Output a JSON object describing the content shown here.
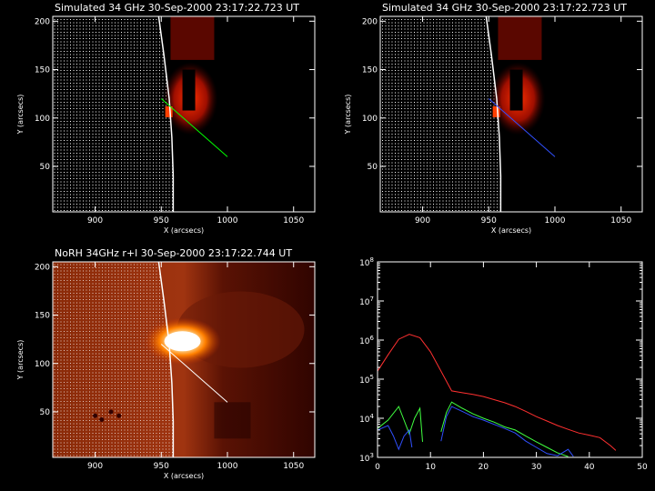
{
  "colors": {
    "background": "#000000",
    "axes": "#ffffff",
    "limb": "#ffffff",
    "profile_line_top_left": "#00ff00",
    "profile_line_top_right": "#3050ff",
    "profile_line_bottom_left": "#ffffff",
    "series_red": "#ff3030",
    "series_green": "#40ff40",
    "series_blue": "#3050ff",
    "heat_low": "#500000",
    "heat_mid": "#c03000",
    "heat_high": "#ffffff"
  },
  "chart_data": [
    {
      "type": "heatmap",
      "id": "sim-left",
      "title": "Simulated 34 GHz 30-Sep-2000 23:17:22.723 UT",
      "xlabel": "X (arcsecs)",
      "ylabel": "Y (arcsecs)",
      "xlim": [
        868,
        1066
      ],
      "ylim": [
        3,
        205
      ],
      "xticks": [
        900,
        950,
        1000,
        1050
      ],
      "yticks": [
        50,
        100,
        150,
        200
      ],
      "limb": [
        [
          948,
          205
        ],
        [
          952,
          165
        ],
        [
          956,
          120
        ],
        [
          958,
          80
        ],
        [
          959,
          40
        ],
        [
          959,
          3
        ]
      ],
      "profile_line": [
        [
          950,
          120
        ],
        [
          1000,
          60
        ]
      ],
      "emission_source": "simulated loop, dark red with black core",
      "line_color": "#00ff00"
    },
    {
      "type": "heatmap",
      "id": "sim-right",
      "title": "Simulated 34 GHz 30-Sep-2000 23:17:22.723 UT",
      "xlabel": "X (arcsecs)",
      "ylabel": "Y (arcsecs)",
      "xlim": [
        868,
        1066
      ],
      "ylim": [
        3,
        205
      ],
      "xticks": [
        900,
        950,
        1000,
        1050
      ],
      "yticks": [
        50,
        100,
        150,
        200
      ],
      "limb": [
        [
          948,
          205
        ],
        [
          952,
          165
        ],
        [
          956,
          120
        ],
        [
          958,
          80
        ],
        [
          959,
          40
        ],
        [
          959,
          3
        ]
      ],
      "profile_line": [
        [
          950,
          120
        ],
        [
          1000,
          60
        ]
      ],
      "emission_source": "simulated loop, dark red with black core",
      "line_color": "#3050ff"
    },
    {
      "type": "heatmap",
      "id": "norh",
      "title": "NoRH 34GHz r+l 30-Sep-2000 23:17:22.744 UT",
      "xlabel": "X (arcsecs)",
      "ylabel": "Y (arcsecs)",
      "xlim": [
        868,
        1066
      ],
      "ylim": [
        3,
        205
      ],
      "xticks": [
        900,
        950,
        1000,
        1050
      ],
      "yticks": [
        50,
        100,
        150,
        200
      ],
      "limb": [
        [
          948,
          205
        ],
        [
          952,
          165
        ],
        [
          956,
          120
        ],
        [
          958,
          80
        ],
        [
          959,
          40
        ],
        [
          959,
          3
        ]
      ],
      "profile_line": [
        [
          950,
          120
        ],
        [
          1000,
          60
        ]
      ],
      "emission_source": "bright compact source near limb",
      "line_color": "#ffffff"
    },
    {
      "type": "line",
      "id": "profiles",
      "title": "",
      "xlabel": "",
      "ylabel": "",
      "xlim": [
        0,
        50
      ],
      "xticks": [
        0,
        10,
        20,
        30,
        40,
        50
      ],
      "ylog": true,
      "ylim_exp": [
        3,
        8
      ],
      "ytick_base": "10",
      "ytick_exponents": [
        "3",
        "4",
        "5",
        "6",
        "7",
        "8"
      ],
      "series": [
        {
          "color": "#ff3030",
          "segments": [
            [
              [
                0,
                160000
              ],
              [
                2,
                420000
              ],
              [
                4,
                1050000
              ],
              [
                6,
                1400000
              ],
              [
                8,
                1150000
              ],
              [
                10,
                500000
              ],
              [
                12,
                160000
              ],
              [
                14,
                50000
              ],
              [
                16,
                45000
              ],
              [
                18,
                41000
              ],
              [
                20,
                36000
              ],
              [
                22,
                30000
              ],
              [
                24,
                25000
              ],
              [
                26,
                20000
              ],
              [
                28,
                15000
              ],
              [
                30,
                11000
              ],
              [
                32,
                8500
              ],
              [
                34,
                6500
              ],
              [
                36,
                5200
              ],
              [
                38,
                4200
              ],
              [
                40,
                3700
              ],
              [
                42,
                3200
              ],
              [
                44,
                2000
              ],
              [
                45,
                1500
              ]
            ]
          ]
        },
        {
          "color": "#40ff40",
          "segments": [
            [
              [
                0,
                5500
              ],
              [
                2,
                9000
              ],
              [
                4,
                20000
              ],
              [
                5,
                9000
              ],
              [
                6,
                4000
              ],
              [
                7,
                10000
              ],
              [
                8,
                18000
              ],
              [
                8.5,
                2500
              ]
            ],
            [
              [
                12,
                4500
              ],
              [
                13,
                14000
              ],
              [
                14,
                26000
              ],
              [
                16,
                18000
              ],
              [
                18,
                13000
              ],
              [
                20,
                10000
              ],
              [
                22,
                8000
              ],
              [
                24,
                6000
              ],
              [
                26,
                5000
              ],
              [
                28,
                3500
              ],
              [
                30,
                2500
              ],
              [
                32,
                1800
              ],
              [
                34,
                1300
              ],
              [
                36,
                1050
              ]
            ]
          ]
        },
        {
          "color": "#3050ff",
          "segments": [
            [
              [
                0,
                5000
              ],
              [
                2,
                6500
              ],
              [
                3,
                3500
              ],
              [
                4,
                1600
              ],
              [
                5,
                3500
              ],
              [
                6,
                5000
              ],
              [
                6.5,
                1800
              ]
            ],
            [
              [
                12,
                2600
              ],
              [
                13,
                11000
              ],
              [
                14,
                20000
              ],
              [
                16,
                15000
              ],
              [
                18,
                11000
              ],
              [
                20,
                9000
              ],
              [
                22,
                7000
              ],
              [
                24,
                5500
              ],
              [
                26,
                4200
              ],
              [
                28,
                2600
              ],
              [
                30,
                1800
              ],
              [
                32,
                1250
              ],
              [
                34,
                1100
              ],
              [
                36,
                1600
              ],
              [
                37,
                1050
              ]
            ]
          ]
        }
      ]
    }
  ]
}
